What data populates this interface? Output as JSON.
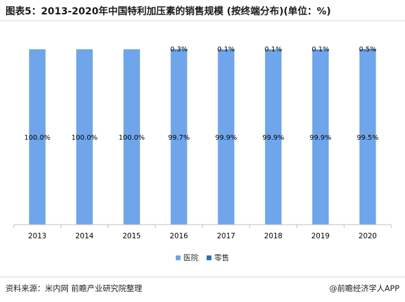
{
  "title": "图表5：2013-2020年中国特利加压素的销售规模 (按终端分布)(单位：%)",
  "source": "资料来源：米内网 前瞻产业研究院整理",
  "brand": "@前瞻经济学人APP",
  "chart_data": {
    "type": "bar",
    "stacked": true,
    "categories": [
      "2013",
      "2014",
      "2015",
      "2016",
      "2017",
      "2018",
      "2019",
      "2020"
    ],
    "series": [
      {
        "name": "医院",
        "values": [
          100.0,
          100.0,
          100.0,
          99.7,
          99.9,
          99.9,
          99.9,
          99.5
        ],
        "labels": [
          "100.0%",
          "100.0%",
          "100.0%",
          "99.7%",
          "99.9%",
          "99.9%",
          "99.9%",
          "99.5%"
        ],
        "color": "#6fa5ea"
      },
      {
        "name": "零售",
        "values": [
          0,
          0,
          0,
          0.3,
          0.1,
          0.1,
          0.1,
          0.5
        ],
        "labels": [
          "",
          "",
          "",
          "0.3%",
          "0.1%",
          "0.1%",
          "0.1%",
          "0.5%"
        ],
        "color": "#2f6fbe"
      }
    ],
    "ylim": [
      0,
      100
    ],
    "grid": false,
    "legend": "bottom"
  }
}
